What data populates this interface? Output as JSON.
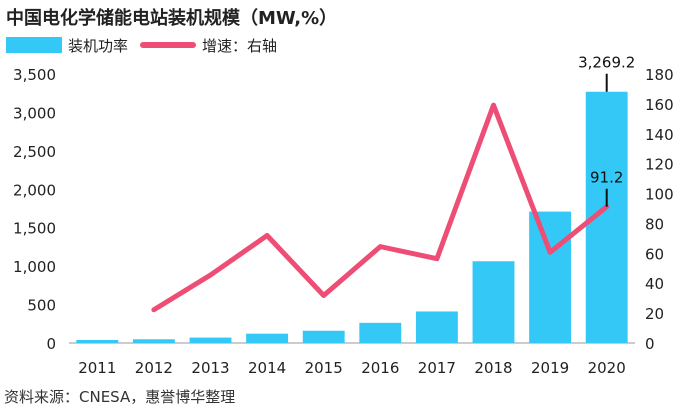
{
  "title": "中国电化学储能电站装机规模（MW,%）",
  "source": "资料来源：CNESA，惠誉博华整理",
  "colors": {
    "bar": "#33c8f5",
    "line": "#ee4d75",
    "axis": "#222222"
  },
  "chart_data": {
    "type": "bar",
    "categories": [
      "2011",
      "2012",
      "2013",
      "2014",
      "2015",
      "2016",
      "2017",
      "2018",
      "2019",
      "2020"
    ],
    "series": [
      {
        "name": "装机功率",
        "type": "bar",
        "axis": "left",
        "values": [
          39.6,
          48.4,
          70.4,
          121.0,
          159.5,
          262.3,
          410.3,
          1063.7,
          1709.6,
          3269.2
        ]
      },
      {
        "name": "增速：右轴",
        "type": "line",
        "axis": "right",
        "values": [
          null,
          22.2,
          45.5,
          71.9,
          31.8,
          64.5,
          56.4,
          159.2,
          60.7,
          91.2
        ]
      }
    ],
    "ylim_left": [
      0,
      3500
    ],
    "yticks_left": [
      "0",
      "500",
      "1,000",
      "1,500",
      "2,000",
      "2,500",
      "3,000",
      "3,500"
    ],
    "ylim_right": [
      0,
      180
    ],
    "yticks_right": [
      "0",
      "20",
      "40",
      "60",
      "80",
      "100",
      "120",
      "140",
      "160",
      "180"
    ],
    "annotations": [
      {
        "label": "3,269.2",
        "series": "装机功率",
        "category": "2020"
      },
      {
        "label": "91.2",
        "series": "增速：右轴",
        "category": "2020"
      }
    ],
    "grid": false,
    "legend": "top-left"
  }
}
